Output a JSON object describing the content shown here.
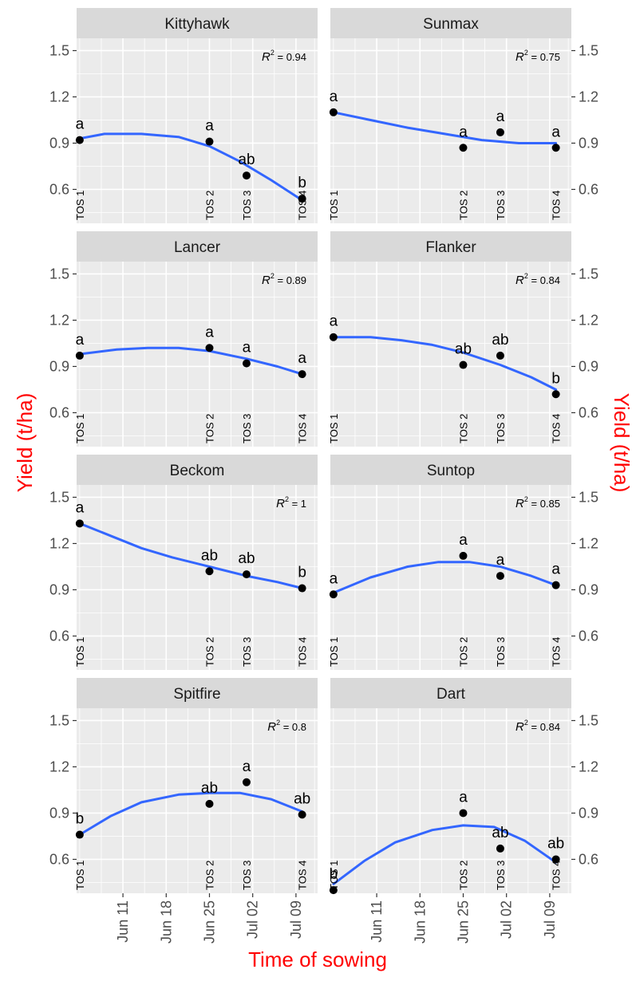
{
  "chart_data": {
    "type": "scatter",
    "ylabel_left": "Yield (t/ha)",
    "ylabel_right": "Yield (t/ha)",
    "xlabel": "Time of sowing",
    "axis_title_color": "#ff0000",
    "curve_color": "#3366ff",
    "point_color": "#000000",
    "panel_bg": "#ebebeb",
    "strip_bg": "#d9d9d9",
    "grid_color": "#ffffff",
    "ylim": [
      0.38,
      1.58
    ],
    "y_ticks": [
      0.6,
      0.9,
      1.2,
      1.5
    ],
    "y_tick_labels": [
      "0.6",
      "0.9",
      "1.2",
      "1.5"
    ],
    "xlim_days": [
      -0.5,
      38.5
    ],
    "x_tick_days": [
      7,
      14,
      21,
      28,
      35
    ],
    "x_tick_labels": [
      "Jun 11",
      "Jun 18",
      "Jun 25",
      "Jul 02",
      "Jul 09"
    ],
    "sowing_days": [
      0,
      21,
      27,
      36
    ],
    "tos_labels": [
      "TOS 1",
      "TOS 2",
      "TOS 3",
      "TOS 4"
    ],
    "panels": [
      {
        "title": "Kittyhawk",
        "y": [
          0.92,
          0.91,
          0.69,
          0.54
        ],
        "letters": [
          "a",
          "a",
          "ab",
          "b"
        ],
        "r2": "0.94",
        "fit": [
          [
            0,
            0.93
          ],
          [
            4,
            0.96
          ],
          [
            10,
            0.96
          ],
          [
            16,
            0.94
          ],
          [
            21,
            0.88
          ],
          [
            26,
            0.78
          ],
          [
            31,
            0.66
          ],
          [
            36,
            0.53
          ]
        ]
      },
      {
        "title": "Sunmax",
        "y": [
          1.1,
          0.87,
          0.97,
          0.87
        ],
        "letters": [
          "a",
          "a",
          "a",
          "a"
        ],
        "r2": "0.75",
        "fit": [
          [
            0,
            1.1
          ],
          [
            6,
            1.05
          ],
          [
            12,
            1.0
          ],
          [
            18,
            0.96
          ],
          [
            24,
            0.92
          ],
          [
            30,
            0.9
          ],
          [
            36,
            0.9
          ]
        ]
      },
      {
        "title": "Lancer",
        "y": [
          0.97,
          1.02,
          0.92,
          0.85
        ],
        "letters": [
          "a",
          "a",
          "a",
          "a"
        ],
        "r2": "0.89",
        "fit": [
          [
            0,
            0.98
          ],
          [
            6,
            1.01
          ],
          [
            11,
            1.02
          ],
          [
            16,
            1.02
          ],
          [
            21,
            1.0
          ],
          [
            27,
            0.95
          ],
          [
            32,
            0.9
          ],
          [
            36,
            0.85
          ]
        ]
      },
      {
        "title": "Flanker",
        "y": [
          1.09,
          0.91,
          0.97,
          0.72
        ],
        "letters": [
          "a",
          "ab",
          "ab",
          "b"
        ],
        "r2": "0.84",
        "fit": [
          [
            0,
            1.09
          ],
          [
            6,
            1.09
          ],
          [
            11,
            1.07
          ],
          [
            16,
            1.04
          ],
          [
            21,
            0.99
          ],
          [
            27,
            0.91
          ],
          [
            32,
            0.83
          ],
          [
            36,
            0.75
          ]
        ]
      },
      {
        "title": "Beckom",
        "y": [
          1.33,
          1.02,
          1.0,
          0.91
        ],
        "letters": [
          "a",
          "ab",
          "ab",
          "b"
        ],
        "r2": "1",
        "fit": [
          [
            0,
            1.33
          ],
          [
            5,
            1.25
          ],
          [
            10,
            1.17
          ],
          [
            15,
            1.11
          ],
          [
            21,
            1.05
          ],
          [
            27,
            0.99
          ],
          [
            32,
            0.95
          ],
          [
            36,
            0.91
          ]
        ]
      },
      {
        "title": "Suntop",
        "y": [
          0.87,
          1.12,
          0.99,
          0.93
        ],
        "letters": [
          "a",
          "a",
          "a",
          "a"
        ],
        "r2": "0.85",
        "fit": [
          [
            0,
            0.88
          ],
          [
            6,
            0.98
          ],
          [
            12,
            1.05
          ],
          [
            17,
            1.08
          ],
          [
            22,
            1.08
          ],
          [
            27,
            1.05
          ],
          [
            32,
            0.99
          ],
          [
            36,
            0.93
          ]
        ]
      },
      {
        "title": "Spitfire",
        "y": [
          0.76,
          0.96,
          1.1,
          0.89
        ],
        "letters": [
          "b",
          "ab",
          "a",
          "ab"
        ],
        "r2": "0.8",
        "fit": [
          [
            0,
            0.76
          ],
          [
            5,
            0.88
          ],
          [
            10,
            0.97
          ],
          [
            16,
            1.02
          ],
          [
            21,
            1.03
          ],
          [
            26,
            1.03
          ],
          [
            31,
            0.99
          ],
          [
            36,
            0.91
          ]
        ]
      },
      {
        "title": "Dart",
        "y": [
          0.4,
          0.9,
          0.67,
          0.6
        ],
        "letters": [
          "b",
          "a",
          "ab",
          "ab"
        ],
        "r2": "0.84",
        "fit": [
          [
            0,
            0.44
          ],
          [
            5,
            0.59
          ],
          [
            10,
            0.71
          ],
          [
            16,
            0.79
          ],
          [
            21,
            0.82
          ],
          [
            26,
            0.81
          ],
          [
            31,
            0.72
          ],
          [
            36,
            0.58
          ]
        ]
      }
    ]
  }
}
